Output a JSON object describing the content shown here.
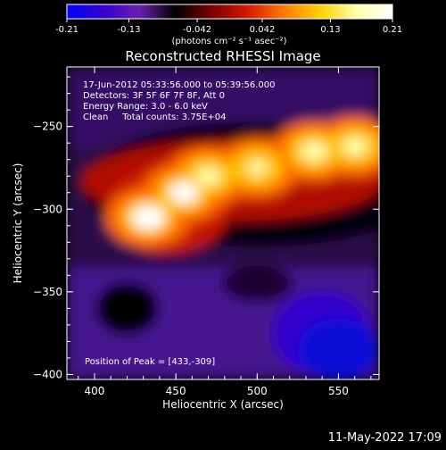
{
  "chart_data": {
    "type": "heatmap",
    "title": "Reconstructed RHESSI Image",
    "xlabel": "Heliocentric X (arcsec)",
    "ylabel": "Heliocentric Y (arcsec)",
    "xlim": [
      383,
      575
    ],
    "ylim": [
      -403,
      -214
    ],
    "x_ticks": [
      "400",
      "450",
      "500",
      "550"
    ],
    "y_ticks": [
      "-250",
      "-300",
      "-350",
      "-400"
    ],
    "colorbar": {
      "range": [
        -0.21,
        0.21
      ],
      "tick_labels": [
        "-0.21",
        "-0.13",
        "-0.042",
        "0.042",
        "0.13",
        "0.21"
      ],
      "unit_label": "(photons cm⁻² s⁻¹ asec⁻²)",
      "colormap_stops": [
        "#0000ff",
        "#3300cc",
        "#6a1fb0",
        "#000000",
        "#7a0000",
        "#d41a00",
        "#ff7a00",
        "#ffd000",
        "#ffffa8",
        "#ffffff"
      ]
    },
    "info_lines": [
      "17-Jun-2012 05:33:56.000 to 05:39:56.000",
      "Detectors: 3F 5F 6F 7F 8F, Att 0",
      "Energy Range: 3.0 - 6.0 keV",
      "Clean     Total counts: 3.75E+04"
    ],
    "peak_label": "Position of Peak = [433,-309]",
    "peak_position": [
      433,
      -309
    ],
    "features": {
      "bright_band": [
        {
          "x": 433,
          "y": -305,
          "value": 0.21
        },
        {
          "x": 455,
          "y": -290,
          "value": 0.19
        },
        {
          "x": 470,
          "y": -280,
          "value": 0.17
        },
        {
          "x": 500,
          "y": -275,
          "value": 0.15
        },
        {
          "x": 535,
          "y": -265,
          "value": 0.18
        },
        {
          "x": 560,
          "y": -262,
          "value": 0.17
        }
      ],
      "dark_region": [
        {
          "x": 540,
          "y": -375,
          "value": -0.18
        },
        {
          "x": 420,
          "y": -360,
          "value": -0.08
        }
      ]
    },
    "timestamp": "11-May-2022 17:09"
  }
}
